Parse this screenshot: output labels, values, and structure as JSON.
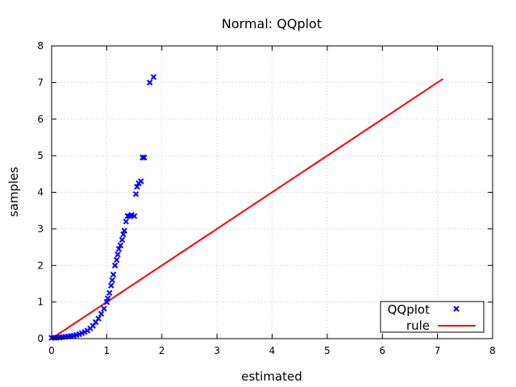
{
  "chart_data": {
    "type": "scatter",
    "title": "Normal: QQplot",
    "xlabel": "estimated",
    "ylabel": "samples",
    "xlim": [
      0,
      8
    ],
    "ylim": [
      0,
      8
    ],
    "xticks": [
      "0",
      "1",
      "2",
      "3",
      "4",
      "5",
      "6",
      "7",
      "8"
    ],
    "yticks": [
      "0",
      "1",
      "2",
      "3",
      "4",
      "5",
      "6",
      "7",
      "8"
    ],
    "grid": true,
    "legend_position": "bottom-right",
    "series": [
      {
        "name": "QQplot",
        "kind": "points",
        "marker": "x",
        "color": "#0000ff",
        "x": [
          0.0,
          0.05,
          0.1,
          0.15,
          0.2,
          0.25,
          0.3,
          0.35,
          0.4,
          0.45,
          0.5,
          0.55,
          0.6,
          0.65,
          0.7,
          0.75,
          0.8,
          0.85,
          0.9,
          0.95,
          1.0,
          1.02,
          1.05,
          1.08,
          1.1,
          1.12,
          1.15,
          1.18,
          1.2,
          1.22,
          1.25,
          1.28,
          1.3,
          1.32,
          1.35,
          1.38,
          1.42,
          1.45,
          1.5,
          1.53,
          1.55,
          1.58,
          1.62,
          1.65,
          1.68,
          1.78,
          1.85
        ],
        "y": [
          0.02,
          0.02,
          0.03,
          0.03,
          0.04,
          0.05,
          0.06,
          0.07,
          0.08,
          0.1,
          0.12,
          0.15,
          0.18,
          0.22,
          0.28,
          0.35,
          0.45,
          0.55,
          0.68,
          0.82,
          1.0,
          1.1,
          1.25,
          1.45,
          1.6,
          1.75,
          2.0,
          2.15,
          2.3,
          2.45,
          2.55,
          2.7,
          2.85,
          2.95,
          3.2,
          3.35,
          3.35,
          3.38,
          3.35,
          3.95,
          4.15,
          4.25,
          4.3,
          4.95,
          4.95,
          7.0,
          7.15
        ]
      },
      {
        "name": "rule",
        "kind": "line",
        "color": "#ff0000",
        "x": [
          0,
          7.1
        ],
        "y": [
          0,
          7.1
        ]
      }
    ]
  }
}
